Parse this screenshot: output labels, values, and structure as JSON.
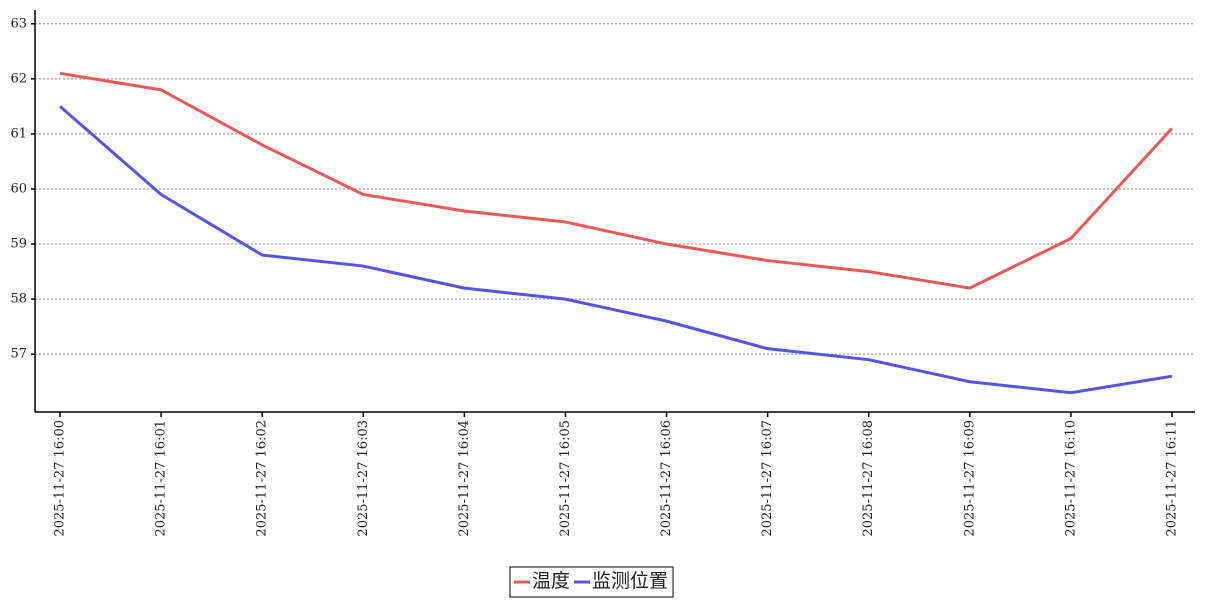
{
  "chart_data": {
    "type": "line",
    "categories": [
      "2025-11-27 16:00",
      "2025-11-27 16:01",
      "2025-11-27 16:02",
      "2025-11-27 16:03",
      "2025-11-27 16:04",
      "2025-11-27 16:05",
      "2025-11-27 16:06",
      "2025-11-27 16:07",
      "2025-11-27 16:08",
      "2025-11-27 16:09",
      "2025-11-27 16:10",
      "2025-11-27 16:11"
    ],
    "series": [
      {
        "name": "温度",
        "color": "#e85a5a",
        "values": [
          62.1,
          61.8,
          60.8,
          59.9,
          59.6,
          59.4,
          59.0,
          58.7,
          58.5,
          58.2,
          59.1,
          61.1
        ]
      },
      {
        "name": "监测位置",
        "color": "#5555e5",
        "values": [
          61.5,
          59.9,
          58.8,
          58.6,
          58.2,
          58.0,
          57.6,
          57.1,
          56.9,
          56.5,
          56.3,
          56.6
        ]
      }
    ],
    "ylim": [
      55.95,
      63.25
    ],
    "yticks": [
      57,
      58,
      59,
      60,
      61,
      62,
      63
    ],
    "grid": true,
    "legend": "bottom"
  }
}
